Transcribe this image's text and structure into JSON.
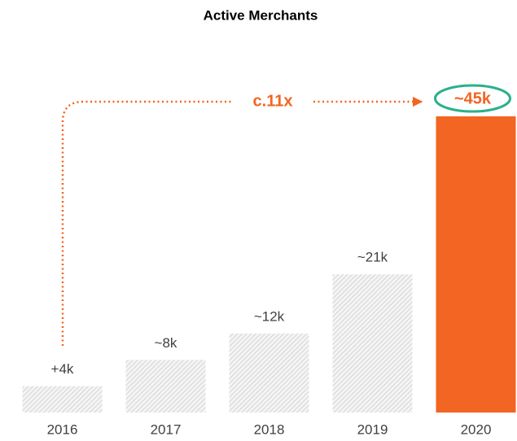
{
  "chart_data": {
    "type": "bar",
    "title": "Active Merchants",
    "categories": [
      "2016",
      "2017",
      "2018",
      "2019",
      "2020"
    ],
    "values": [
      4,
      8,
      12,
      21,
      45
    ],
    "value_labels": [
      "+4k",
      "~8k",
      "~12k",
      "~21k",
      "~45k"
    ],
    "colors": [
      "#c8c8c8",
      "#c8c8c8",
      "#c8c8c8",
      "#c8c8c8",
      "#f26522"
    ],
    "annotation": "c.11x"
  }
}
